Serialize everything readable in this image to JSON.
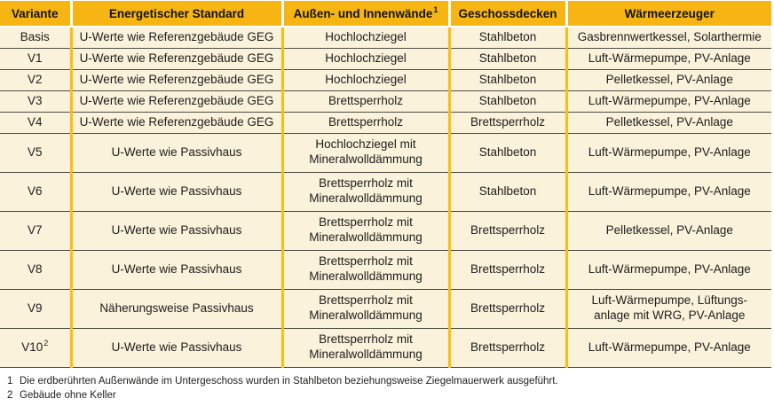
{
  "colors": {
    "header_bg": "#f7b513",
    "body_bg": "#faf2db",
    "column_separator_gold": "#fbbe0e",
    "row_line_dark": "#4f4e45",
    "text": "#1d1d1b"
  },
  "table": {
    "columns": [
      {
        "label": "Variante",
        "sup": null
      },
      {
        "label": "Energetischer Standard",
        "sup": null
      },
      {
        "label": "Außen- und Innenwände",
        "sup": "1"
      },
      {
        "label": "Geschossdecken",
        "sup": null
      },
      {
        "label": "Wärmeerzeuger",
        "sup": null
      }
    ],
    "rows": [
      {
        "sup": null,
        "cells": [
          "Basis",
          "U-Werte wie Referenzgebäude GEG",
          "Hochlochziegel",
          "Stahlbeton",
          "Gasbrennwertkessel, Solarthermie"
        ]
      },
      {
        "sup": null,
        "cells": [
          "V1",
          "U-Werte wie Referenzgebäude GEG",
          "Hochlochziegel",
          "Stahlbeton",
          "Luft-Wärmepumpe, PV-Anlage"
        ]
      },
      {
        "sup": null,
        "cells": [
          "V2",
          "U-Werte wie Referenzgebäude GEG",
          "Hochlochziegel",
          "Stahlbeton",
          "Pelletkessel, PV-Anlage"
        ]
      },
      {
        "sup": null,
        "cells": [
          "V3",
          "U-Werte wie Referenzgebäude GEG",
          "Brettsperrholz",
          "Stahlbeton",
          "Luft-Wärmepumpe, PV-Anlage"
        ]
      },
      {
        "sup": null,
        "cells": [
          "V4",
          "U-Werte wie Referenzgebäude GEG",
          "Brettsperrholz",
          "Brettsperrholz",
          "Pelletkessel, PV-Anlage"
        ]
      },
      {
        "sup": null,
        "cells": [
          "V5",
          "U-Werte wie Passivhaus",
          "Hochlochziegel mit\nMineralwolldämmung",
          "Stahlbeton",
          "Luft-Wärmepumpe, PV-Anlage"
        ]
      },
      {
        "sup": null,
        "cells": [
          "V6",
          "U-Werte wie Passivhaus",
          "Brettsperrholz mit\nMineralwolldämmung",
          "Stahlbeton",
          "Luft-Wärmepumpe, PV-Anlage"
        ]
      },
      {
        "sup": null,
        "cells": [
          "V7",
          "U-Werte wie Passivhaus",
          "Brettsperrholz mit\nMineralwolldämmung",
          "Brettsperrholz",
          "Pelletkessel, PV-Anlage"
        ]
      },
      {
        "sup": null,
        "cells": [
          "V8",
          "U-Werte wie Passivhaus",
          "Brettsperrholz mit\nMineralwolldämmung",
          "Brettsperrholz",
          "Luft-Wärmepumpe, PV-Anlage"
        ]
      },
      {
        "sup": null,
        "cells": [
          "V9",
          "Näherungsweise Passivhaus",
          "Brettsperrholz mit\nMineralwolldämmung",
          "Brettsperrholz",
          "Luft-Wärmepumpe, Lüftungs-\nanlage mit WRG, PV-Anlage"
        ]
      },
      {
        "sup": "2",
        "cells": [
          "V10",
          "U-Werte wie Passivhaus",
          "Brettsperrholz mit\nMineralwolldämmung",
          "Brettsperrholz",
          "Luft-Wärmepumpe, PV-Anlage"
        ]
      }
    ],
    "footnotes": [
      {
        "num": "1",
        "text": "Die erdberührten Außenwände im Untergeschoss wurden in Stahlbeton beziehungsweise Ziegelmauerwerk ausgeführt."
      },
      {
        "num": "2",
        "text": "Gebäude ohne Keller"
      }
    ]
  }
}
